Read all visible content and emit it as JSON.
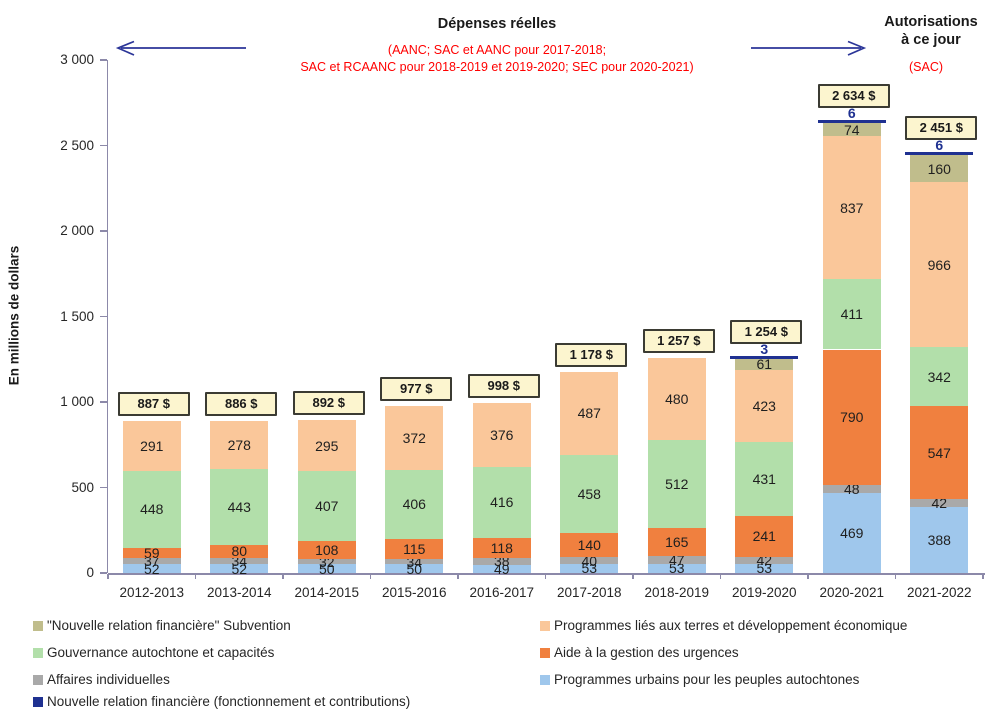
{
  "header": {
    "left_title": "Dépenses réelles",
    "left_subtitle_line1": "(AANC; SAC et AANC pour 2017-2018;",
    "left_subtitle_line2": "SAC et RCAANC pour 2018-2019 et 2019-2020; SEC pour 2020-2021)",
    "right_title_line1": "Autorisations",
    "right_title_line2": "à ce jour",
    "right_subtitle": "(SAC)"
  },
  "chart_data": {
    "type": "bar",
    "stacked": true,
    "ylabel": "En millions de dollars",
    "ylim": [
      0,
      3000
    ],
    "yticks": [
      0,
      500,
      1000,
      1500,
      2000,
      2500,
      3000
    ],
    "ytick_labels": [
      "0",
      "500",
      "1 000",
      "1 500",
      "2 000",
      "2 500",
      "3 000"
    ],
    "grid": false,
    "legend_position": "bottom",
    "categories": [
      "2012-2013",
      "2013-2014",
      "2014-2015",
      "2015-2016",
      "2016-2017",
      "2017-2018",
      "2018-2019",
      "2019-2020",
      "2020-2021",
      "2021-2022"
    ],
    "series": [
      {
        "name": "Programmes urbains pour les peuples autochtones",
        "color": "#9fc7ec",
        "values": [
          52,
          52,
          50,
          50,
          49,
          53,
          53,
          53,
          469,
          388
        ]
      },
      {
        "name": "Affaires individuelles",
        "color": "#a9a9a9",
        "values": [
          37,
          34,
          32,
          34,
          38,
          40,
          47,
          42,
          48,
          42
        ]
      },
      {
        "name": "Aide à la gestion des urgences",
        "color": "#f0803f",
        "values": [
          59,
          80,
          108,
          115,
          118,
          140,
          165,
          241,
          790,
          547
        ]
      },
      {
        "name": "Gouvernance autochtone et capacités",
        "color": "#b2dfaa",
        "values": [
          448,
          443,
          407,
          406,
          416,
          458,
          512,
          431,
          411,
          342
        ]
      },
      {
        "name": "Programmes liés aux terres et développement économique",
        "color": "#fac79a",
        "values": [
          291,
          278,
          295,
          372,
          376,
          487,
          480,
          423,
          837,
          966
        ]
      },
      {
        "name": "\"Nouvelle relation financière\" Subvention",
        "color": "#c0bd8c",
        "values": [
          0,
          0,
          0,
          0,
          0,
          0,
          0,
          61,
          74,
          160
        ]
      },
      {
        "name": "Nouvelle relation financière (fonctionnement et contributions)",
        "color": "#1f3191",
        "values": [
          0,
          0,
          0,
          0,
          0,
          0,
          0,
          3,
          6,
          6
        ],
        "label_above": true
      }
    ],
    "totals": [
      "887 $",
      "886 $",
      "892 $",
      "977 $",
      "998 $",
      "1 178 $",
      "1 257 $",
      "1 254 $",
      "2 634 $",
      "2 451 $"
    ]
  },
  "legend": {
    "left": [
      {
        "label": "\"Nouvelle relation financière\" Subvention",
        "color": "#c0bd8c"
      },
      {
        "label": "Gouvernance autochtone et capacités",
        "color": "#b2dfaa"
      },
      {
        "label": "Affaires individuelles",
        "color": "#a9a9a9"
      },
      {
        "label": "Nouvelle relation financière (fonctionnement et contributions)",
        "color": "#1f3191"
      }
    ],
    "right": [
      {
        "label": "Programmes liés aux terres et développement économique",
        "color": "#fac79a"
      },
      {
        "label": "Aide à la gestion des urgences",
        "color": "#f0803f"
      },
      {
        "label": "Programmes urbains pour les peuples autochtones",
        "color": "#9fc7ec"
      }
    ]
  },
  "colors": {
    "arrow": "#2b3598",
    "axis": "#8c89a9",
    "red_text": "#ff0000",
    "total_box_bg": "#fcf5cf",
    "navy": "#1f3191"
  }
}
